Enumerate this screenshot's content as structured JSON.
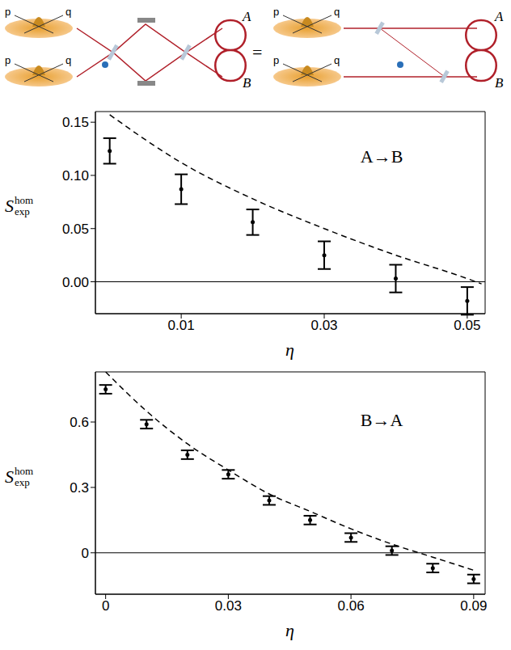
{
  "diagram": {
    "axis_labels": [
      "p",
      "q"
    ],
    "outputs": [
      "A",
      "B"
    ],
    "equals": "="
  },
  "chart_data": [
    {
      "type": "scatter",
      "annotation": "A→B",
      "x_label": "η",
      "y_label": {
        "base": "S",
        "sup": "hom",
        "sub": "exp"
      },
      "x": [
        0,
        0.01,
        0.02,
        0.03,
        0.04,
        0.05
      ],
      "values": [
        0.123,
        0.087,
        0.056,
        0.025,
        0.003,
        -0.018
      ],
      "errors": [
        0.012,
        0.014,
        0.012,
        0.013,
        0.013,
        0.013
      ],
      "color": "#000000",
      "marker": "dot",
      "theory": {
        "x": [
          0,
          0.01,
          0.02,
          0.03,
          0.04,
          0.05,
          0.052
        ],
        "values": [
          0.157,
          0.112,
          0.078,
          0.05,
          0.025,
          0.003,
          -0.002
        ],
        "line_style": "dashed",
        "color": "#000000"
      },
      "zero_line": 0,
      "xlim": [
        -0.002,
        0.0525
      ],
      "xticks": [
        0.01,
        0.03,
        0.05
      ],
      "ylim": [
        -0.03,
        0.16
      ],
      "yticks": [
        {
          "value": 0,
          "label": "0.00"
        },
        {
          "value": 0.05,
          "label": "0.05"
        },
        {
          "value": 0.1,
          "label": "0.10"
        },
        {
          "value": 0.15,
          "label": "0.15"
        }
      ]
    },
    {
      "type": "scatter",
      "annotation": "B→A",
      "x_label": "η",
      "y_label": {
        "base": "S",
        "sup": "hom",
        "sub": "exp"
      },
      "x": [
        0,
        0.01,
        0.02,
        0.03,
        0.04,
        0.05,
        0.06,
        0.07,
        0.08,
        0.09
      ],
      "values": [
        0.75,
        0.59,
        0.45,
        0.36,
        0.24,
        0.15,
        0.07,
        0.01,
        -0.07,
        -0.12
      ],
      "errors": [
        0.02,
        0.02,
        0.02,
        0.02,
        0.02,
        0.02,
        0.02,
        0.02,
        0.02,
        0.02
      ],
      "color": "#000000",
      "marker": "dot",
      "theory": {
        "x": [
          0,
          0.01,
          0.02,
          0.03,
          0.04,
          0.05,
          0.06,
          0.07,
          0.08,
          0.09
        ],
        "values": [
          0.83,
          0.65,
          0.5,
          0.38,
          0.27,
          0.19,
          0.11,
          0.04,
          -0.02,
          -0.08
        ],
        "line_style": "dashed",
        "color": "#000000"
      },
      "zero_line": 0,
      "xlim": [
        -0.0025,
        0.0928
      ],
      "xticks": [
        0,
        0.03,
        0.06,
        0.09
      ],
      "ylim": [
        -0.19,
        0.83
      ],
      "yticks": [
        0,
        0.3,
        0.6
      ]
    }
  ]
}
